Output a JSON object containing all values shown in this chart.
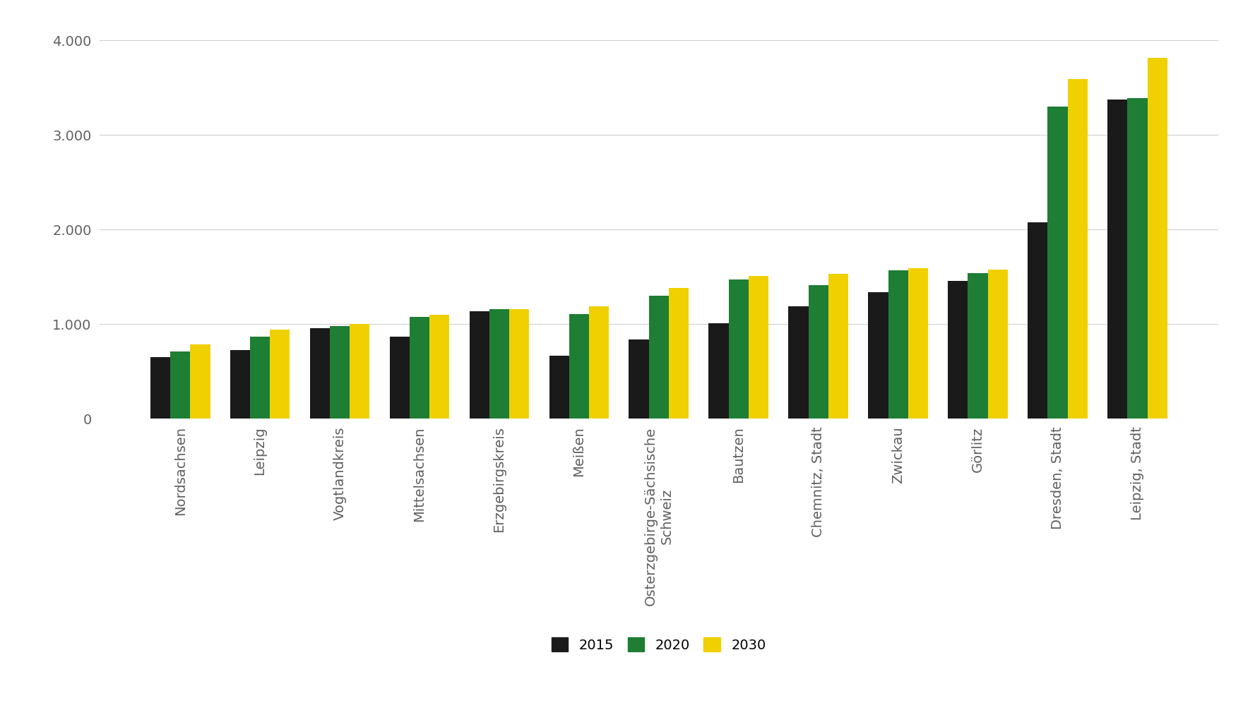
{
  "categories": [
    "Nordsachsen",
    "Leipzig",
    "Vogtlandkreis",
    "Mittelsachsen",
    "Erzgebirgskreis",
    "Meißen",
    "Osterzgebirge-Sächsische\nSchweiz",
    "Bautzen",
    "Chemnitz, Stadt",
    "Zwickau",
    "Görlitz",
    "Dresden, Stadt",
    "Leipzig, Stadt"
  ],
  "series": {
    "2015": [
      650,
      730,
      960,
      870,
      1140,
      670,
      840,
      1010,
      1190,
      1340,
      1460,
      2080,
      3380
    ],
    "2020": [
      710,
      870,
      980,
      1080,
      1160,
      1110,
      1300,
      1470,
      1410,
      1570,
      1540,
      3300,
      3390
    ],
    "2030": [
      790,
      940,
      1000,
      1100,
      1160,
      1190,
      1380,
      1510,
      1530,
      1590,
      1580,
      3590,
      3820
    ]
  },
  "colors": {
    "2015": "#1a1a1a",
    "2020": "#1e7e34",
    "2030": "#f0d000"
  },
  "ylim": [
    0,
    4200
  ],
  "yticks": [
    0,
    1000,
    2000,
    3000,
    4000
  ],
  "ytick_labels": [
    "0",
    "1.000",
    "2.000",
    "3.000",
    "4.000"
  ],
  "bar_width": 0.25,
  "background_color": "#ffffff",
  "grid_color": "#d0d0d0",
  "tick_color": "#606060",
  "tick_label_fontsize": 14,
  "legend_fontsize": 14
}
